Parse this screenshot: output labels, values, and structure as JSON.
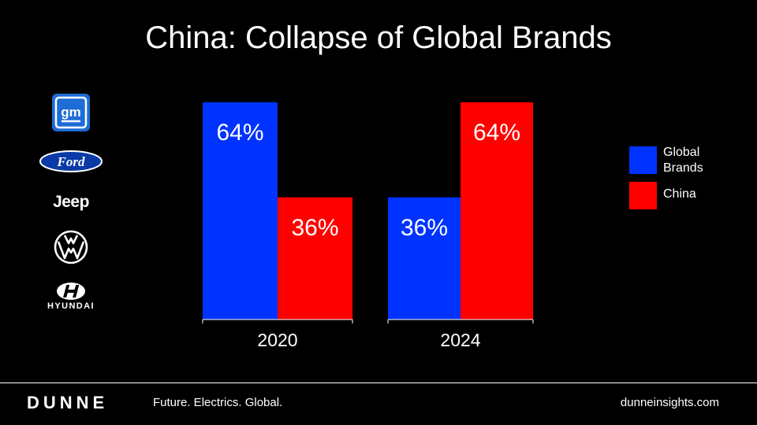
{
  "title": "China: Collapse of Global Brands",
  "logos": {
    "gm": "gm",
    "ford": "Ford",
    "jeep": "Jeep",
    "hyundai": "HYUNDAI"
  },
  "footer": {
    "brand": "DUNNE",
    "tagline": "Future. Electrics. Global.",
    "url": "dunneinsights.com"
  },
  "colors": {
    "global": "#0033ff",
    "china": "#ff0000",
    "gm_blue": "#1e6cd6"
  },
  "chart_data": {
    "type": "bar",
    "categories": [
      "2020",
      "2024"
    ],
    "series": [
      {
        "name": "Global Brands",
        "values": [
          64,
          36
        ],
        "labels": [
          "64%",
          "36%"
        ]
      },
      {
        "name": "China",
        "values": [
          36,
          64
        ],
        "labels": [
          "36%",
          "64%"
        ]
      }
    ],
    "ylim": [
      0,
      64
    ],
    "legend_position": "right",
    "grid": false
  }
}
